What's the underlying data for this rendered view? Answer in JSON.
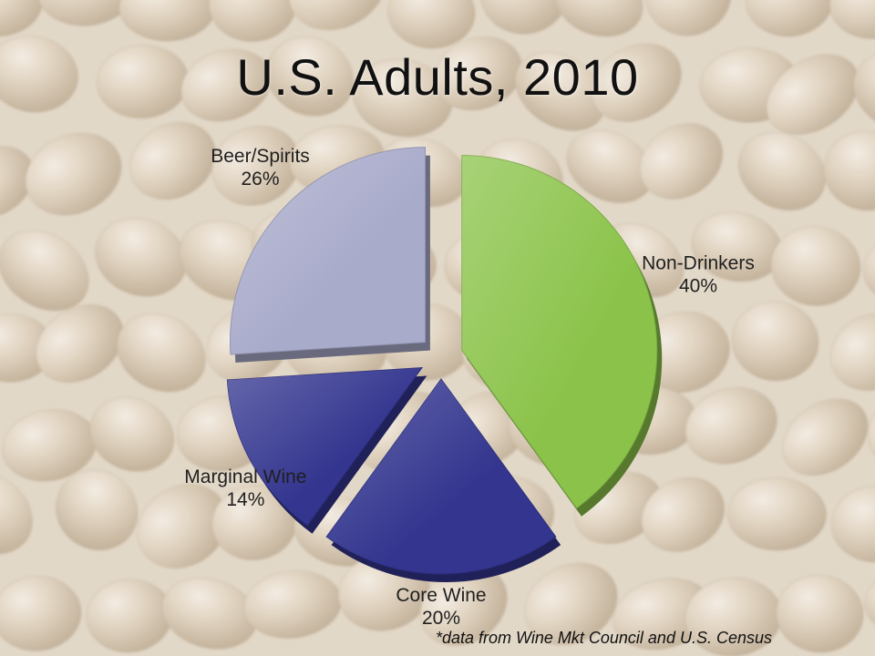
{
  "slide": {
    "title": "U.S. Adults, 2010",
    "footnote": "*data from Wine Mkt Council and U.S. Census"
  },
  "chart_data": {
    "type": "pie",
    "title": "U.S. Adults, 2010",
    "slices": [
      {
        "label": "Non-Drinkers",
        "value": 40,
        "value_label": "40%",
        "color": "#8bc34a"
      },
      {
        "label": "Core Wine",
        "value": 20,
        "value_label": "20%",
        "color": "#33358f"
      },
      {
        "label": "Marginal Wine",
        "value": 14,
        "value_label": "14%",
        "color": "#33358f"
      },
      {
        "label": "Beer/Spirits",
        "value": 26,
        "value_label": "26%",
        "color": "#a9abcb"
      }
    ],
    "exploded": true,
    "legend": "none",
    "labels": "outside"
  }
}
